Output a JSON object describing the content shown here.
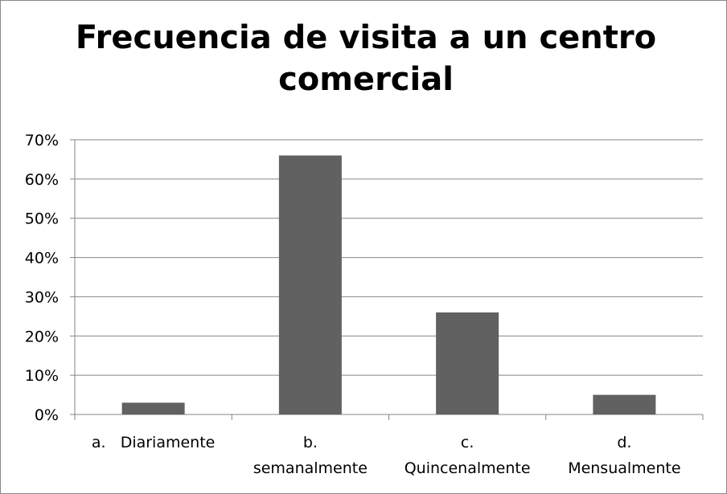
{
  "chart_data": {
    "type": "bar",
    "title": "Frecuencia de visita a un centro\ncomercial",
    "categories": [
      "a.   Diariamente",
      "b.\nsemanalmente",
      "c.\nQuincenalmente",
      "d.\nMensualmente"
    ],
    "values": [
      3,
      66,
      26,
      5
    ],
    "color": "#616161",
    "ylim": [
      0,
      70
    ],
    "yticks": [
      {
        "value": 0,
        "label": "0%"
      },
      {
        "value": 10,
        "label": "10%"
      },
      {
        "value": 20,
        "label": "20%"
      },
      {
        "value": 30,
        "label": "30%"
      },
      {
        "value": 40,
        "label": "40%"
      },
      {
        "value": 50,
        "label": "50%"
      },
      {
        "value": 60,
        "label": "60%"
      },
      {
        "value": 70,
        "label": "70%"
      }
    ],
    "grid": true
  }
}
